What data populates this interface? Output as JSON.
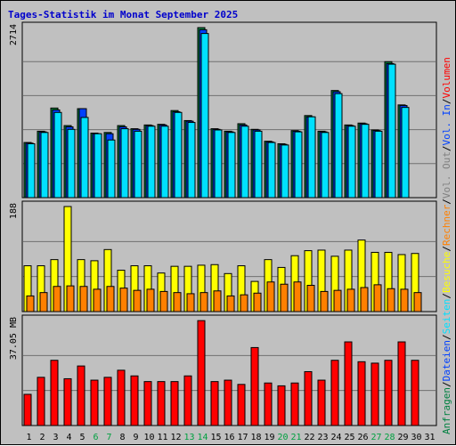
{
  "chart_data": {
    "title": "Tages-Statistik im Monat September 2025",
    "colors": {
      "background": "#c0c0c0",
      "plot_background": "#c0c0c0",
      "title": "#0000cc",
      "hits": "#008040",
      "files": "#0040ff",
      "pages": "#00e0ff",
      "visits": "#ffff00",
      "hosts": "#ff8000",
      "kbytes": "#ff0000",
      "weekend_tick": "#00a040",
      "tick": "#000000",
      "grid": "#000000"
    },
    "categories": [
      "1",
      "2",
      "3",
      "4",
      "5",
      "6",
      "7",
      "8",
      "9",
      "10",
      "11",
      "12",
      "13",
      "14",
      "15",
      "16",
      "17",
      "18",
      "19",
      "20",
      "21",
      "22",
      "23",
      "24",
      "25",
      "26",
      "27",
      "28",
      "29",
      "30",
      "31"
    ],
    "weekend_days": [
      "6",
      "7",
      "13",
      "14",
      "20",
      "21",
      "27",
      "28"
    ],
    "panels": [
      {
        "type": "bar",
        "id": "requests",
        "ymax_label": "2714",
        "ylim": [
          0,
          2714
        ],
        "series": [
          {
            "name": "Anfragen",
            "color": "#008040",
            "values": [
              880,
              1060,
              1430,
              1150,
              1420,
              1030,
              1040,
              1150,
              1100,
              1160,
              1170,
              1390,
              1230,
              2714,
              1100,
              1060,
              1180,
              1090,
              900,
              860,
              1070,
              1310,
              1060,
              1710,
              1160,
              1190,
              1080,
              2170,
              1480,
              null,
              null
            ]
          },
          {
            "name": "Dateien",
            "color": "#0040ff",
            "values": [
              870,
              1050,
              1400,
              1130,
              1420,
              1020,
              1020,
              1130,
              1090,
              1150,
              1160,
              1370,
              1220,
              2680,
              1090,
              1050,
              1160,
              1080,
              890,
              850,
              1060,
              1290,
              1050,
              1690,
              1150,
              1180,
              1070,
              2140,
              1470,
              null,
              null
            ]
          },
          {
            "name": "Seiten",
            "color": "#00e0ff",
            "values": [
              860,
              1040,
              1360,
              1090,
              1280,
              1020,
              920,
              1100,
              1060,
              1140,
              1140,
              1360,
              1200,
              2620,
              1080,
              1040,
              1140,
              1060,
              880,
              840,
              1050,
              1290,
              1040,
              1660,
              1140,
              1170,
              1060,
              2130,
              1440,
              null,
              null
            ]
          }
        ]
      },
      {
        "type": "bar",
        "id": "visits",
        "ymax_label": "188",
        "ylim": [
          0,
          188
        ],
        "series": [
          {
            "name": "Besuche",
            "color": "#ffff00",
            "values": [
              82,
              82,
              93,
              188,
              93,
              91,
              111,
              74,
              82,
              82,
              69,
              81,
              81,
              83,
              84,
              68,
              82,
              54,
              93,
              79,
              100,
              109,
              110,
              99,
              110,
              128,
              106,
              106,
              102,
              104,
              null
            ]
          },
          {
            "name": "Rechner",
            "color": "#ff8000",
            "values": [
              28,
              34,
              45,
              46,
              45,
              40,
              45,
              42,
              38,
              40,
              36,
              34,
              32,
              34,
              37,
              28,
              30,
              33,
              53,
              49,
              53,
              47,
              36,
              38,
              40,
              43,
              48,
              41,
              40,
              34,
              null
            ]
          }
        ]
      },
      {
        "type": "bar",
        "id": "volume",
        "ymax_label": "37.05 MB",
        "ylim": [
          0,
          37.05
        ],
        "series": [
          {
            "name": "Volumen",
            "color": "#ff0000",
            "values": [
              11,
              17,
              23,
              16.5,
              21,
              16,
              17,
              19.5,
              17.5,
              15.5,
              15.5,
              15.5,
              17.5,
              37,
              15.5,
              16,
              14.5,
              27.5,
              15,
              14,
              15,
              19,
              16,
              23,
              29.5,
              22.5,
              22,
              23,
              29.5,
              23,
              null
            ]
          }
        ]
      }
    ],
    "legend_right": [
      {
        "text": "Anfragen",
        "color": "#008040"
      },
      {
        "text": "/",
        "color": "#000000"
      },
      {
        "text": "Dateien",
        "color": "#0040ff"
      },
      {
        "text": "/",
        "color": "#000000"
      },
      {
        "text": "Seiten",
        "color": "#00e0ff"
      },
      {
        "text": "/",
        "color": "#000000"
      },
      {
        "text": "Besuche",
        "color": "#ffff00"
      },
      {
        "text": "/",
        "color": "#000000"
      },
      {
        "text": "Rechner",
        "color": "#ff8000"
      },
      {
        "text": "/",
        "color": "#000000"
      },
      {
        "text": "Vol. Out",
        "color": "#808080"
      },
      {
        "text": "/",
        "color": "#000000"
      },
      {
        "text": "Vol. In",
        "color": "#0040ff"
      },
      {
        "text": "/",
        "color": "#000000"
      },
      {
        "text": "Volumen",
        "color": "#ff0000"
      }
    ]
  }
}
